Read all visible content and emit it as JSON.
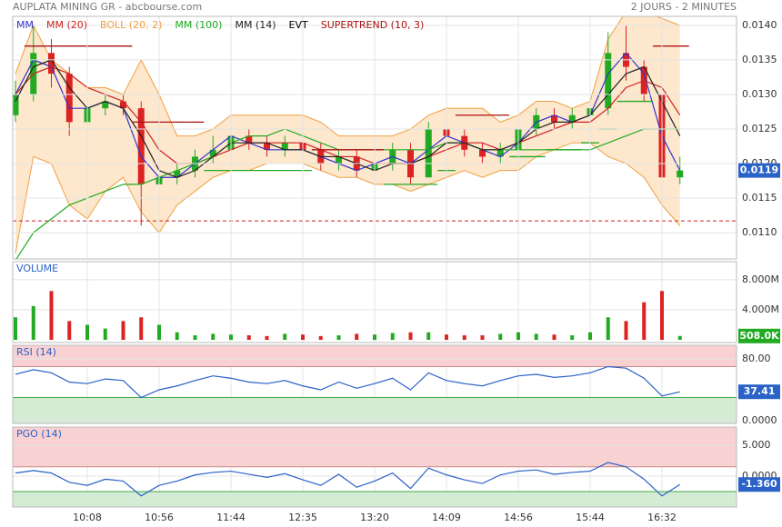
{
  "header": {
    "title": "AUPLATA MINING GR - abcbourse.com",
    "timeframe": "2 JOURS - 2 MINUTES"
  },
  "chart_data": [
    {
      "type": "candlestick",
      "categories": [
        null,
        null,
        null,
        null,
        "10:08",
        null,
        null,
        null,
        "10:56",
        null,
        null,
        null,
        "11:44",
        null,
        null,
        null,
        "12:35",
        null,
        null,
        null,
        "13:20",
        null,
        null,
        null,
        "14:09",
        null,
        null,
        null,
        "14:56",
        null,
        null,
        null,
        "15:44",
        null,
        null,
        null,
        "16:32",
        null
      ],
      "open": [
        0.0127,
        0.013,
        0.0136,
        0.0133,
        0.0126,
        0.0128,
        0.0129,
        0.0128,
        0.0117,
        0.0118,
        0.0119,
        0.0121,
        0.0122,
        0.0124,
        0.0123,
        0.0122,
        0.0123,
        0.0122,
        0.012,
        0.0121,
        0.0119,
        0.012,
        0.0122,
        0.0118,
        0.0125,
        0.0124,
        0.0122,
        0.0121,
        0.0122,
        0.0125,
        0.0127,
        0.0126,
        0.0127,
        0.0128,
        0.0136,
        0.0134,
        0.013,
        0.0118
      ],
      "high": [
        0.0132,
        0.014,
        0.0138,
        0.0134,
        0.0129,
        0.013,
        0.013,
        0.0129,
        0.012,
        0.012,
        0.0122,
        0.0124,
        0.0125,
        0.0125,
        0.0124,
        0.0124,
        0.0124,
        0.0123,
        0.0122,
        0.0122,
        0.0121,
        0.0123,
        0.0123,
        0.0126,
        0.0126,
        0.0125,
        0.0123,
        0.0123,
        0.0127,
        0.0128,
        0.0128,
        0.0128,
        0.0129,
        0.0139,
        0.014,
        0.0135,
        0.0131,
        0.0121
      ],
      "low": [
        0.0126,
        0.0129,
        0.0131,
        0.0124,
        0.0125,
        0.0127,
        0.0127,
        0.0111,
        0.0116,
        0.0117,
        0.0118,
        0.012,
        0.0121,
        0.0122,
        0.0121,
        0.0121,
        0.0121,
        0.0119,
        0.0119,
        0.0118,
        0.0118,
        0.0119,
        0.0117,
        0.0118,
        0.0123,
        0.0121,
        0.012,
        0.012,
        0.0121,
        0.0124,
        0.0125,
        0.0125,
        0.0126,
        0.0127,
        0.0132,
        0.0129,
        0.0116,
        0.0117
      ],
      "close": [
        0.013,
        0.0136,
        0.0133,
        0.0126,
        0.0128,
        0.0129,
        0.0128,
        0.0117,
        0.0118,
        0.0119,
        0.0121,
        0.0122,
        0.0124,
        0.0123,
        0.0122,
        0.0123,
        0.0122,
        0.012,
        0.0121,
        0.0119,
        0.012,
        0.0122,
        0.0118,
        0.0125,
        0.0124,
        0.0122,
        0.0121,
        0.0122,
        0.0125,
        0.0127,
        0.0126,
        0.0127,
        0.0128,
        0.0136,
        0.0134,
        0.013,
        0.0118,
        0.0119
      ],
      "up_color": "#22aa22",
      "down_color": "#dd2222",
      "series": [
        {
          "name": "MM",
          "color": "#3333cc",
          "values": [
            0.013,
            0.0135,
            0.0134,
            0.0128,
            0.0128,
            0.0129,
            0.0128,
            0.0121,
            0.0118,
            0.0118,
            0.012,
            0.0122,
            0.0124,
            0.0123,
            0.0122,
            0.0122,
            0.0122,
            0.0121,
            0.012,
            0.0119,
            0.012,
            0.0121,
            0.012,
            0.0122,
            0.0124,
            0.0123,
            0.0122,
            0.0121,
            0.0123,
            0.0126,
            0.0127,
            0.0126,
            0.0127,
            0.0133,
            0.0136,
            0.0133,
            0.0124,
            0.0119
          ]
        },
        {
          "name": "MM (20)",
          "color": "#cc2222",
          "values": [
            0.013,
            0.0133,
            0.0134,
            0.0133,
            0.0131,
            0.013,
            0.0129,
            0.0126,
            0.0122,
            0.012,
            0.012,
            0.0121,
            0.0122,
            0.0123,
            0.0123,
            0.0123,
            0.0123,
            0.0122,
            0.0121,
            0.0121,
            0.012,
            0.012,
            0.012,
            0.0121,
            0.0122,
            0.0123,
            0.0123,
            0.0122,
            0.0123,
            0.0124,
            0.0125,
            0.0126,
            0.0126,
            0.0128,
            0.0131,
            0.0132,
            0.0131,
            0.0127
          ]
        },
        {
          "name": "BOLL (20, 2)",
          "color": "#f0a040",
          "fill": "#fde3c4",
          "upper": [
            0.0133,
            0.014,
            0.0135,
            0.0133,
            0.0131,
            0.0131,
            0.013,
            0.0135,
            0.013,
            0.0124,
            0.0124,
            0.0125,
            0.0127,
            0.0127,
            0.0127,
            0.0127,
            0.0127,
            0.0126,
            0.0124,
            0.0124,
            0.0124,
            0.0124,
            0.0125,
            0.0127,
            0.0128,
            0.0128,
            0.0128,
            0.0126,
            0.0127,
            0.0129,
            0.0129,
            0.0128,
            0.0129,
            0.0138,
            0.0142,
            0.0142,
            0.0141,
            0.014
          ],
          "lower": [
            0.0107,
            0.0121,
            0.012,
            0.0114,
            0.0112,
            0.0116,
            0.0118,
            0.0113,
            0.011,
            0.0114,
            0.0116,
            0.0118,
            0.0119,
            0.0119,
            0.012,
            0.012,
            0.012,
            0.0119,
            0.0118,
            0.0118,
            0.0117,
            0.0117,
            0.0116,
            0.0117,
            0.0118,
            0.0119,
            0.0118,
            0.0119,
            0.0119,
            0.0121,
            0.0122,
            0.0123,
            0.0123,
            0.0121,
            0.012,
            0.0118,
            0.0114,
            0.0111
          ]
        },
        {
          "name": "MM (100)",
          "color": "#22aa22",
          "values": [
            0.0106,
            0.011,
            0.0112,
            0.0114,
            0.0115,
            0.0116,
            0.0117,
            0.0117,
            0.0118,
            0.0119,
            0.012,
            0.0121,
            0.0123,
            0.0124,
            0.0124,
            0.0125,
            0.0124,
            0.0123,
            0.0122,
            0.0122,
            0.0122,
            0.0122,
            0.0122,
            0.0122,
            0.0123,
            0.0123,
            0.0122,
            0.0122,
            0.0122,
            0.0122,
            0.0122,
            0.0122,
            0.0122,
            0.0123,
            0.0124,
            0.0125,
            0.0125,
            0.0125
          ]
        },
        {
          "name": "MM (14)",
          "color": "#222222",
          "values": [
            0.0129,
            0.0134,
            0.0135,
            0.0131,
            0.0128,
            0.0129,
            0.0128,
            0.0124,
            0.0119,
            0.0118,
            0.0119,
            0.0121,
            0.0123,
            0.0123,
            0.0123,
            0.0122,
            0.0122,
            0.0121,
            0.0121,
            0.012,
            0.0119,
            0.012,
            0.012,
            0.0121,
            0.0123,
            0.0123,
            0.0122,
            0.0122,
            0.0123,
            0.0125,
            0.0126,
            0.0126,
            0.0127,
            0.013,
            0.0133,
            0.0134,
            0.0129,
            0.0124
          ]
        },
        {
          "name": "EVT",
          "color": "#000000"
        },
        {
          "name": "SUPERTREND (10, 3)",
          "color": "#aa1111",
          "color_below": "#22aa22",
          "step": true,
          "values": [
            null,
            0.0137,
            0.0137,
            0.0137,
            0.0137,
            0.0137,
            0.0137,
            0.0126,
            0.0126,
            0.0126,
            0.0126,
            0.0119,
            0.0119,
            0.0119,
            0.0119,
            0.0119,
            0.0119,
            0.0122,
            0.0122,
            0.0122,
            0.0122,
            0.0117,
            0.0117,
            0.0117,
            0.0119,
            0.0127,
            0.0127,
            0.0127,
            0.0121,
            0.0121,
            0.0122,
            0.0122,
            0.0123,
            0.0125,
            0.0129,
            0.0129,
            0.0137,
            0.0137
          ]
        }
      ],
      "hline": 0.01117,
      "hline_color": "#cc2222",
      "last_value": 0.0119,
      "last_color": "#2a62c8",
      "ylim": [
        0.01062,
        0.01413
      ],
      "yticks": [
        {
          "value": 0.011,
          "label": "0.0110"
        },
        0.0115,
        {
          "value": 0.012,
          "label": "0.0120"
        },
        0.0125,
        {
          "value": 0.013,
          "label": "0.0130"
        },
        0.0135,
        {
          "value": 0.014,
          "label": "0.0140"
        }
      ],
      "grid": true
    },
    {
      "type": "volume",
      "title": "VOLUME",
      "values": [
        3000000,
        4500000,
        6500000,
        2500000,
        2000000,
        1500000,
        2500000,
        3000000,
        2000000,
        1000000,
        600000,
        800000,
        700000,
        600000,
        500000,
        800000,
        700000,
        500000,
        600000,
        800000,
        700000,
        900000,
        1000000,
        1000000,
        700000,
        600000,
        600000,
        800000,
        1000000,
        800000,
        700000,
        600000,
        1000000,
        3000000,
        2500000,
        5000000,
        6500000,
        508000
      ],
      "up_color": "#22aa22",
      "down_color": "#dd2222",
      "last_value": {
        "value": 508000,
        "label": "508.0K"
      },
      "last_color": "#22aa22",
      "ylim": [
        0,
        10400000
      ],
      "yticks": [
        {
          "value": 4000000,
          "label": "4.000M"
        },
        {
          "value": 8000000,
          "label": "8.000M"
        }
      ],
      "grid": true
    },
    {
      "type": "oscillator",
      "title": "RSI (14)",
      "color": "#2a62c8",
      "values": [
        60,
        66,
        62,
        50,
        48,
        54,
        52,
        30,
        40,
        45,
        52,
        58,
        55,
        50,
        48,
        52,
        45,
        40,
        50,
        42,
        48,
        55,
        40,
        62,
        52,
        48,
        45,
        52,
        58,
        60,
        56,
        58,
        62,
        70,
        68,
        55,
        32,
        37.41
      ],
      "upper_zone": 70,
      "lower_zone": 30,
      "upper_color": "#f8d2d2",
      "lower_color": "#d4ebd4",
      "last_value": 37.41,
      "last_color": "#2a62c8",
      "ylim": [
        -3.5,
        97.6
      ],
      "yticks": [
        {
          "value": 0,
          "label": "0.0000"
        },
        {
          "value": 80,
          "label": "80.00"
        }
      ],
      "grid": true
    },
    {
      "type": "oscillator",
      "title": "PGO (14)",
      "color": "#2a62c8",
      "values": [
        0.5,
        0.9,
        0.5,
        -1,
        -1.5,
        -0.5,
        -0.8,
        -3.2,
        -1.5,
        -0.8,
        0.2,
        0.6,
        0.8,
        0.3,
        -0.2,
        0.4,
        -0.6,
        -1.5,
        0.3,
        -1.8,
        -0.8,
        0.5,
        -2,
        1.3,
        0.2,
        -0.6,
        -1.2,
        0.2,
        0.8,
        1,
        0.3,
        0.6,
        0.8,
        2.2,
        1.5,
        -0.5,
        -3.2,
        -1.36
      ],
      "upper_zone": 1.5,
      "lower_zone": -2.5,
      "upper_color": "#f8d2d2",
      "lower_color": "#d4ebd4",
      "last_value": {
        "value": -1.36,
        "label": "-1.360"
      },
      "last_color": "#2a62c8",
      "ylim": [
        -5,
        7.94
      ],
      "yticks": [
        {
          "value": 0,
          "label": "0.0000"
        },
        {
          "value": 5,
          "label": "5.000"
        }
      ],
      "grid": true
    }
  ]
}
